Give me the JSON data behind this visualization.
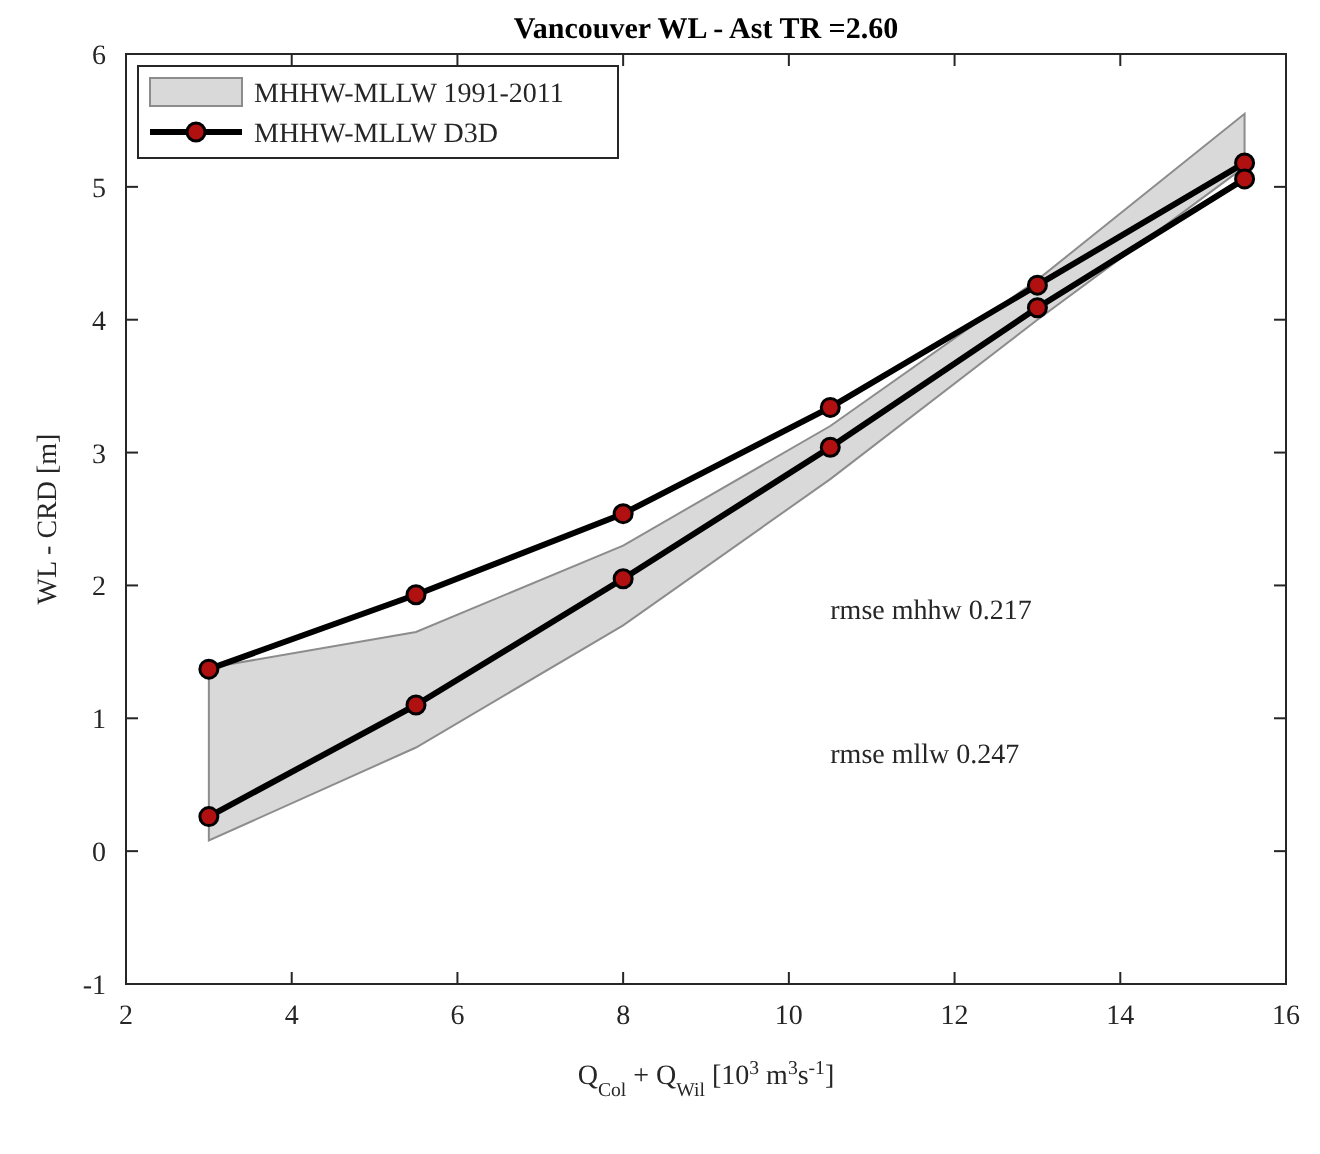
{
  "chart_data": {
    "type": "line",
    "title": "Vancouver WL - Ast TR =2.60",
    "xlabel": "Q$_{Col}$ + Q$_{Wil}$ [10$^{3}$ m$^{3}$s$^{-1}$]",
    "ylabel": "WL - CRD [m]",
    "x": [
      3,
      5.5,
      8,
      10.5,
      13,
      15.5
    ],
    "series": [
      {
        "type": "area",
        "name": "MHHW-MLLW 1991-2011",
        "color": "#d9d9d9",
        "values": [
          null,
          null,
          null,
          null,
          null,
          null
        ],
        "upper": [
          1.38,
          1.65,
          2.3,
          3.2,
          4.3,
          5.55
        ],
        "lower": [
          0.08,
          0.78,
          1.7,
          2.8,
          4.0,
          5.15
        ]
      },
      {
        "name": "MHHW-MLLW D3D",
        "color": "#000000",
        "values": [
          1.37,
          1.93,
          2.54,
          3.34,
          4.26,
          5.18
        ]
      },
      {
        "color": "#000000",
        "values": [
          0.26,
          1.1,
          2.05,
          3.04,
          4.09,
          5.06
        ]
      }
    ],
    "annotations": [
      "rmse mhhw 0.217",
      "rmse mllw 0.247"
    ],
    "xlim": [
      2,
      16
    ],
    "xticks": [
      2,
      4,
      6,
      8,
      10,
      12,
      14,
      16
    ],
    "ylim": [
      -1,
      6
    ],
    "yticks": [
      -1,
      0,
      1,
      2,
      3,
      4,
      5,
      6
    ],
    "grid": false,
    "legend": "top left",
    "marker": "circle",
    "line_style": "solid"
  }
}
